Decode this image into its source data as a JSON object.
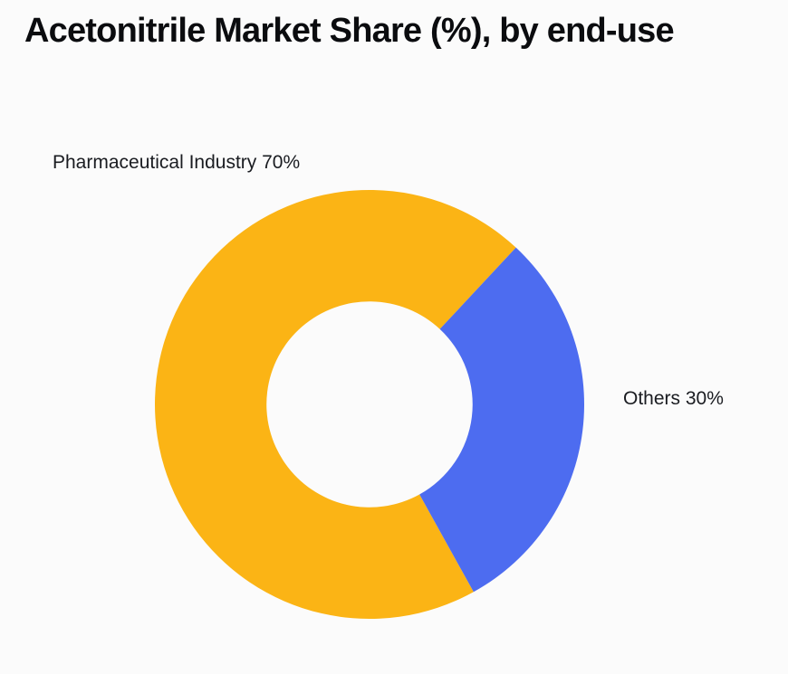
{
  "page": {
    "background_color": "#FBFBFB"
  },
  "header": {
    "title": "Acetonitrile Market Share (%), by end-use"
  },
  "chart_data": {
    "type": "pie",
    "subtype": "donut",
    "title": "Acetonitrile Market Share (%), by end-use",
    "unit": "%",
    "slices": [
      {
        "label": "Pharmaceutical Industry",
        "value": 70,
        "color": "#FBB415",
        "annotation": "Pharmaceutical Industry 70%"
      },
      {
        "label": "Others",
        "value": 30,
        "color": "#4D6CF0",
        "annotation": "Others 30%"
      }
    ],
    "inner_radius_ratio": 0.48,
    "rotation_deg": 151,
    "legend_position": "outside-labels",
    "grid": false
  }
}
